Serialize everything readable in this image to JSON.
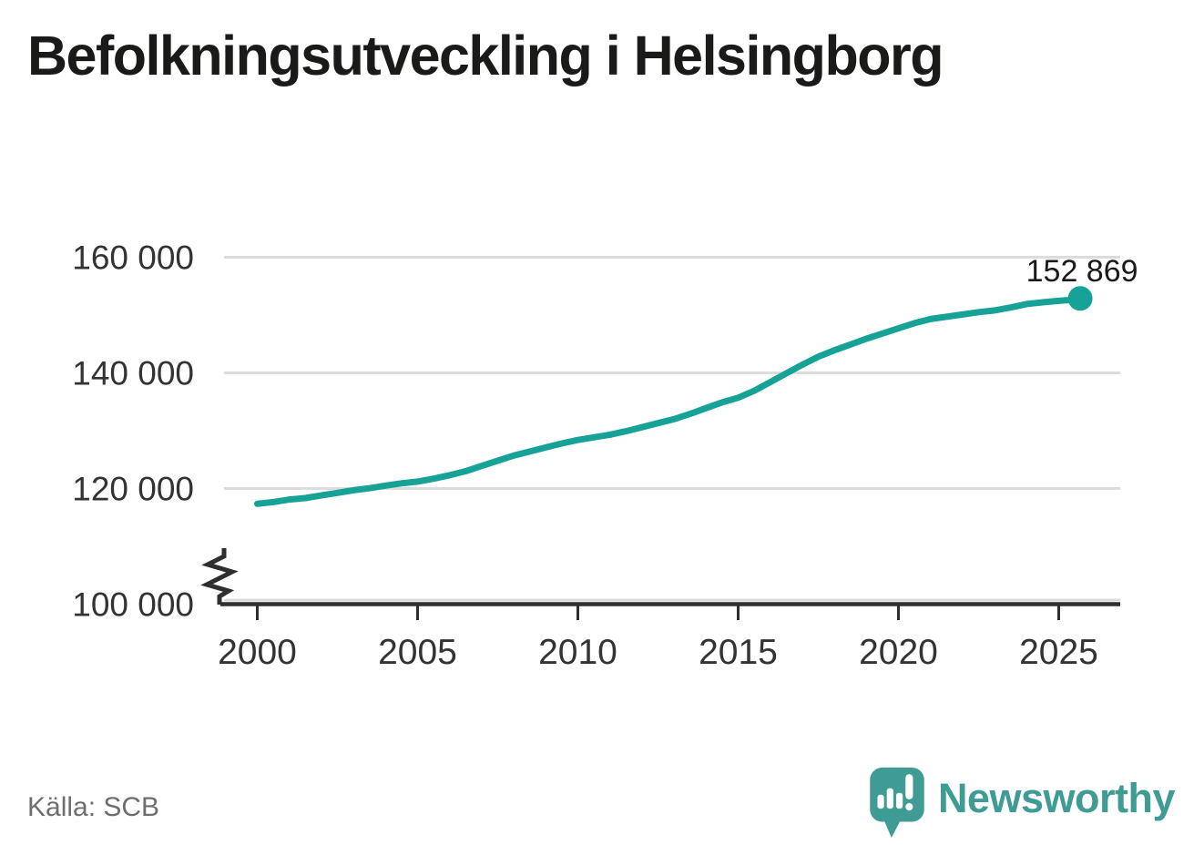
{
  "title": "Befolkningsutveckling i Helsingborg",
  "source": "Källa: SCB",
  "branding": {
    "wordmark": "Newsworthy",
    "icon": "newsworthy-speech-bubble-chart-icon"
  },
  "colors": {
    "line": "#16a296",
    "end_point": "#16a296",
    "brand": "#3f9c95",
    "title_text": "#1a1a18",
    "axis": "#2f2f2f",
    "grid": "#dcdcdc",
    "tick_text": "#333333",
    "source_text": "#6e6e6e",
    "value_label_text": "#1a1a1a",
    "background": "#ffffff"
  },
  "chart_data": {
    "type": "line",
    "title": "Befolkningsutveckling i Helsingborg",
    "grid": "horizontal-only",
    "axis_break_at_bottom": true,
    "xlim": [
      1998.85,
      2026.9
    ],
    "ylim": [
      100000,
      163000
    ],
    "yticks": [
      {
        "value": 160000,
        "label": "160 000"
      },
      {
        "value": 140000,
        "label": "140 000"
      },
      {
        "value": 120000,
        "label": "120 000"
      },
      {
        "value": 100000,
        "label": "100 000"
      }
    ],
    "xticks": [
      {
        "value": 2000,
        "label": "2000"
      },
      {
        "value": 2005,
        "label": "2005"
      },
      {
        "value": 2010,
        "label": "2010"
      },
      {
        "value": 2015,
        "label": "2015"
      },
      {
        "value": 2020,
        "label": "2020"
      },
      {
        "value": 2025,
        "label": "2025"
      }
    ],
    "x": [
      2000,
      2000.5,
      2001,
      2001.5,
      2002,
      2002.5,
      2003,
      2003.5,
      2004,
      2004.5,
      2005,
      2005.5,
      2006,
      2006.5,
      2007,
      2007.5,
      2008,
      2008.5,
      2009,
      2009.5,
      2010,
      2010.5,
      2011,
      2011.5,
      2012,
      2012.5,
      2013,
      2013.5,
      2014,
      2014.5,
      2015,
      2015.5,
      2016,
      2016.5,
      2017,
      2017.5,
      2018,
      2018.5,
      2019,
      2019.5,
      2020,
      2020.5,
      2021,
      2021.5,
      2022,
      2022.5,
      2023,
      2023.5,
      2024,
      2024.5,
      2025,
      2025.35,
      2025.67
    ],
    "values": [
      117350,
      117650,
      118100,
      118350,
      118800,
      119250,
      119700,
      120050,
      120500,
      120900,
      121200,
      121700,
      122300,
      123000,
      123900,
      124800,
      125700,
      126400,
      127100,
      127800,
      128400,
      128850,
      129300,
      129900,
      130600,
      131300,
      132000,
      132900,
      133900,
      134900,
      135700,
      136900,
      138400,
      139900,
      141400,
      142800,
      143900,
      144900,
      145900,
      146800,
      147700,
      148600,
      149300,
      149700,
      150100,
      150500,
      150800,
      151300,
      151900,
      152200,
      152450,
      152600,
      152869
    ],
    "end_point": {
      "x": 2025.67,
      "value": 152869,
      "label": "152 869"
    }
  }
}
